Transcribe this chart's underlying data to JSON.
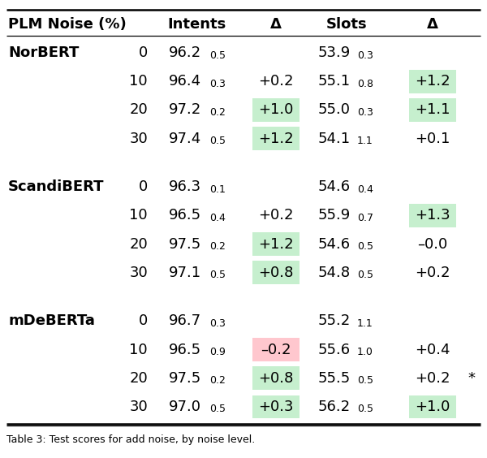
{
  "rows": [
    {
      "model": "NorBERT",
      "noise": "0",
      "intent": "96.2",
      "intent_std": "0.5",
      "intent_delta": "",
      "intent_delta_bg": "none",
      "slot": "53.9",
      "slot_std": "0.3",
      "slot_delta": "",
      "slot_delta_bg": "none",
      "star": false
    },
    {
      "model": "",
      "noise": "10",
      "intent": "96.4",
      "intent_std": "0.3",
      "intent_delta": "+0.2",
      "intent_delta_bg": "none",
      "slot": "55.1",
      "slot_std": "0.8",
      "slot_delta": "+1.2",
      "slot_delta_bg": "green",
      "star": false
    },
    {
      "model": "",
      "noise": "20",
      "intent": "97.2",
      "intent_std": "0.2",
      "intent_delta": "+1.0",
      "intent_delta_bg": "green",
      "slot": "55.0",
      "slot_std": "0.3",
      "slot_delta": "+1.1",
      "slot_delta_bg": "green",
      "star": false
    },
    {
      "model": "",
      "noise": "30",
      "intent": "97.4",
      "intent_std": "0.5",
      "intent_delta": "+1.2",
      "intent_delta_bg": "green",
      "slot": "54.1",
      "slot_std": "1.1",
      "slot_delta": "+0.1",
      "slot_delta_bg": "none",
      "star": false
    },
    {
      "model": "ScandiBERT",
      "noise": "0",
      "intent": "96.3",
      "intent_std": "0.1",
      "intent_delta": "",
      "intent_delta_bg": "none",
      "slot": "54.6",
      "slot_std": "0.4",
      "slot_delta": "",
      "slot_delta_bg": "none",
      "star": false
    },
    {
      "model": "",
      "noise": "10",
      "intent": "96.5",
      "intent_std": "0.4",
      "intent_delta": "+0.2",
      "intent_delta_bg": "none",
      "slot": "55.9",
      "slot_std": "0.7",
      "slot_delta": "+1.3",
      "slot_delta_bg": "green",
      "star": false
    },
    {
      "model": "",
      "noise": "20",
      "intent": "97.5",
      "intent_std": "0.2",
      "intent_delta": "+1.2",
      "intent_delta_bg": "green",
      "slot": "54.6",
      "slot_std": "0.5",
      "slot_delta": "–0.0",
      "slot_delta_bg": "none",
      "star": false
    },
    {
      "model": "",
      "noise": "30",
      "intent": "97.1",
      "intent_std": "0.5",
      "intent_delta": "+0.8",
      "intent_delta_bg": "green",
      "slot": "54.8",
      "slot_std": "0.5",
      "slot_delta": "+0.2",
      "slot_delta_bg": "none",
      "star": false
    },
    {
      "model": "mDeBERTa",
      "noise": "0",
      "intent": "96.7",
      "intent_std": "0.3",
      "intent_delta": "",
      "intent_delta_bg": "none",
      "slot": "55.2",
      "slot_std": "1.1",
      "slot_delta": "",
      "slot_delta_bg": "none",
      "star": false
    },
    {
      "model": "",
      "noise": "10",
      "intent": "96.5",
      "intent_std": "0.9",
      "intent_delta": "–0.2",
      "intent_delta_bg": "red",
      "slot": "55.6",
      "slot_std": "1.0",
      "slot_delta": "+0.4",
      "slot_delta_bg": "none",
      "star": false
    },
    {
      "model": "",
      "noise": "20",
      "intent": "97.5",
      "intent_std": "0.2",
      "intent_delta": "+0.8",
      "intent_delta_bg": "green",
      "slot": "55.5",
      "slot_std": "0.5",
      "slot_delta": "+0.2",
      "slot_delta_bg": "none",
      "star": true
    },
    {
      "model": "",
      "noise": "30",
      "intent": "97.0",
      "intent_std": "0.5",
      "intent_delta": "+0.3",
      "intent_delta_bg": "green",
      "slot": "56.2",
      "slot_std": "0.5",
      "slot_delta": "+1.0",
      "slot_delta_bg": "green",
      "star": false
    }
  ],
  "green_bg": "#c6efce",
  "red_bg": "#ffc7ce",
  "group_starts": [
    0,
    4,
    8
  ],
  "fig_width": 6.0,
  "fig_height": 5.64,
  "dpi": 100
}
